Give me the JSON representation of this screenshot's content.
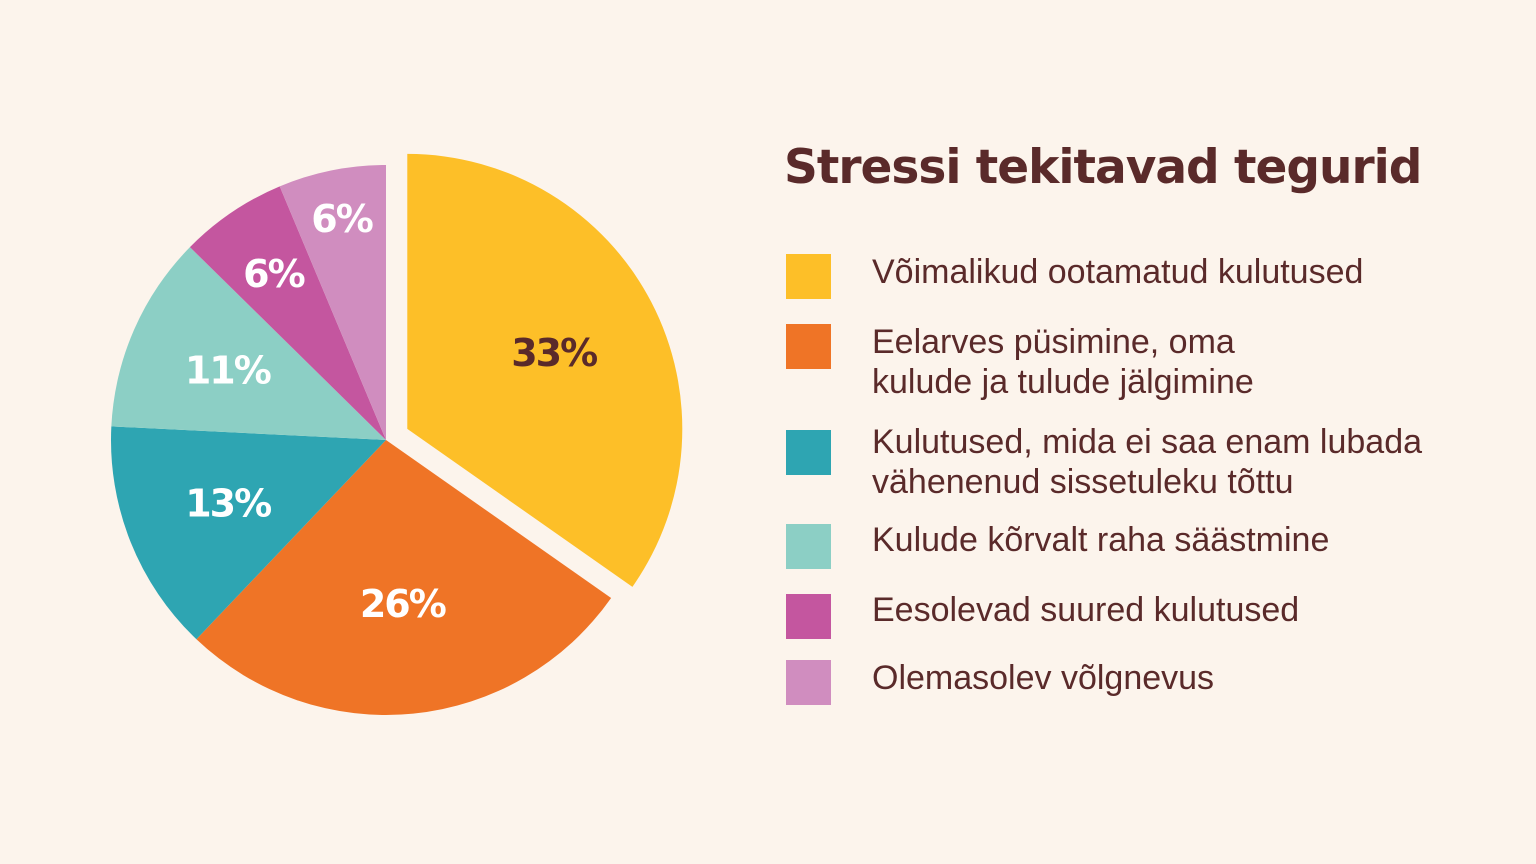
{
  "chart_data": {
    "type": "pie",
    "title": "Stressi tekitavad tegurid",
    "slices": [
      {
        "label": "Võimalikud ootamatud kulutused",
        "value": 33,
        "display": "33%",
        "color": "#fdbf28",
        "label_color": "#5a2a2a",
        "exploded": true
      },
      {
        "label": "Eelarves püsimine, oma\nkulude ja tulude jälgimine",
        "value": 26,
        "display": "26%",
        "color": "#ef7426",
        "label_color": "#ffffff",
        "exploded": false
      },
      {
        "label": "Kulutused, mida ei saa enam lubada\nvähenenud sissetuleku tõttu",
        "value": 13,
        "display": "13%",
        "color": "#2ea5b2",
        "label_color": "#ffffff",
        "exploded": false
      },
      {
        "label": "Kulude kõrvalt raha säästmine",
        "value": 11,
        "display": "11%",
        "color": "#8ccfc5",
        "label_color": "#ffffff",
        "exploded": false
      },
      {
        "label": "Eesolevad suured kulutused",
        "value": 6,
        "display": "6%",
        "color": "#c4569f",
        "label_color": "#ffffff",
        "exploded": false
      },
      {
        "label": "Olemasolev võlgnevus",
        "value": 6,
        "display": "6%",
        "color": "#d08dbf",
        "label_color": "#ffffff",
        "exploded": false
      }
    ],
    "legend_position": "right"
  }
}
